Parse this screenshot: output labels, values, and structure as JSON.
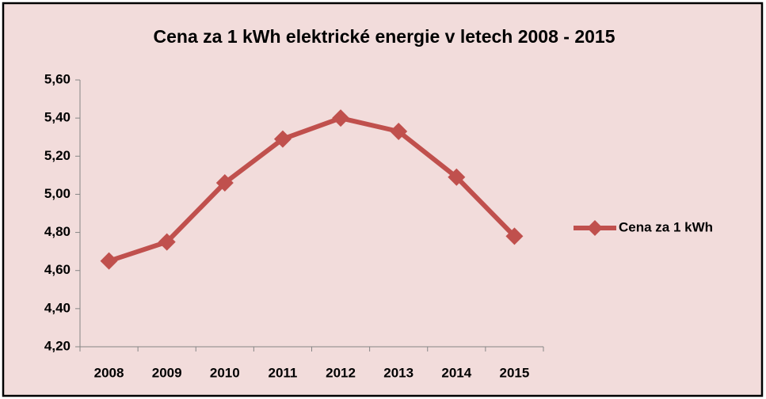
{
  "chart_data": {
    "type": "line",
    "title": "Cena za 1 kWh elektrické energie v letech 2008 - 2015",
    "categories": [
      "2008",
      "2009",
      "2010",
      "2011",
      "2012",
      "2013",
      "2014",
      "2015"
    ],
    "series": [
      {
        "name": "Cena za 1 kWh",
        "color": "#c0504d",
        "values": [
          4.65,
          4.75,
          5.06,
          5.29,
          5.4,
          5.33,
          5.09,
          4.78
        ]
      }
    ],
    "ylim": [
      4.2,
      5.6
    ],
    "yticks": [
      {
        "value": 4.2,
        "label": "4,20"
      },
      {
        "value": 4.4,
        "label": "4,40"
      },
      {
        "value": 4.6,
        "label": "4,60"
      },
      {
        "value": 4.8,
        "label": "4,80"
      },
      {
        "value": 5.0,
        "label": "5,00"
      },
      {
        "value": 5.2,
        "label": "5,20"
      },
      {
        "value": 5.4,
        "label": "5,40"
      },
      {
        "value": 5.6,
        "label": "5,60"
      }
    ],
    "legend": "right"
  }
}
